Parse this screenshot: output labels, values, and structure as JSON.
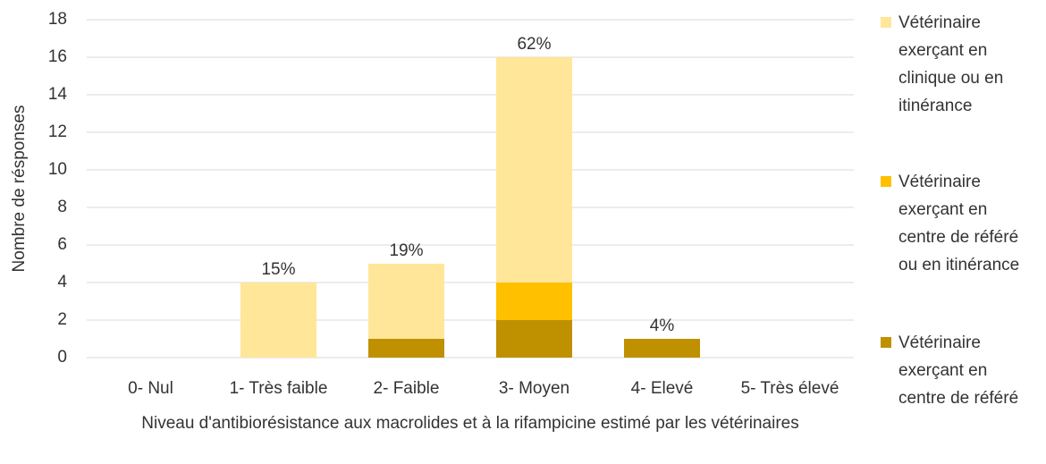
{
  "chart_data": {
    "type": "stacked_bar",
    "categories": [
      "0- Nul",
      "1- Très faible",
      "2- Faible",
      "3- Moyen",
      "4- Elevé",
      "5- Très élevé"
    ],
    "series": [
      {
        "name": "Vétérinaire exerçant en centre de référé",
        "color": "#bf9000",
        "values": [
          0,
          0,
          1,
          2,
          1,
          0
        ]
      },
      {
        "name": "Vétérinaire exerçant en centre de référé ou en itinérance",
        "color": "#ffc000",
        "values": [
          0,
          0,
          0,
          2,
          0,
          0
        ]
      },
      {
        "name": "Vétérinaire exerçant en clinique ou en itinérance",
        "color": "#ffe699",
        "values": [
          0,
          4,
          4,
          12,
          0,
          0
        ]
      }
    ],
    "percentages": [
      null,
      15,
      19,
      62,
      4,
      null
    ],
    "percentage_labels": [
      null,
      "15%",
      "19%",
      "62%",
      "4%",
      null
    ],
    "xlabel": "Niveau d'antibiorésistance aux macrolides et à la rifampicine estimé par les vétérinaires",
    "ylabel": "Nombre de résponses",
    "ylim": [
      0,
      18
    ],
    "yticks": [
      0,
      2,
      4,
      6,
      8,
      10,
      12,
      14,
      16,
      18
    ],
    "grid": true,
    "legend": "right"
  }
}
